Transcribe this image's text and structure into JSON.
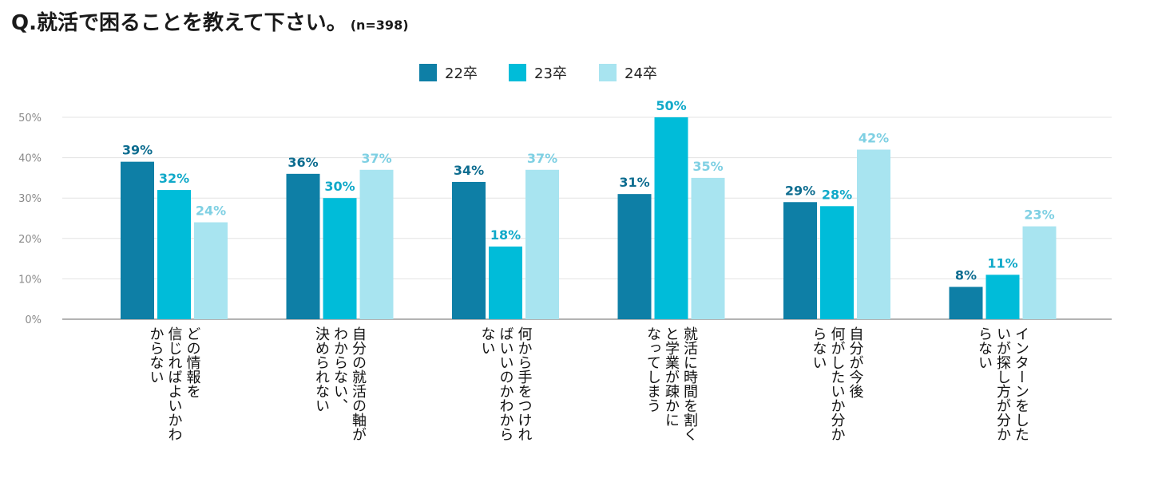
{
  "title": {
    "main": "Q.就活で困ることを教えて下さい。",
    "note": "(n=398)"
  },
  "chart_data": {
    "type": "bar",
    "title": "Q.就活で困ることを教えて下さい。(n=398)",
    "ylim": [
      0,
      50
    ],
    "yticks": [
      "0%",
      "10%",
      "20%",
      "30%",
      "40%",
      "50%"
    ],
    "grid": true,
    "legend_position": "top-center",
    "categories": [
      [
        "どの情報を",
        "信じればよいかわ",
        "からない"
      ],
      [
        "自分の就活の軸が",
        "わからない、",
        "決められない"
      ],
      [
        "何から手をつけれ",
        "ばいいのかわから",
        "ない"
      ],
      [
        "就活に時間を割く",
        "と学業が疎かに",
        "なってしまう"
      ],
      [
        "自分が今後",
        "何がしたいか分か",
        "らない"
      ],
      [
        "インターンをした",
        "いが探し方が分か",
        "らない"
      ]
    ],
    "series": [
      {
        "name": "22卒",
        "color": "#0e7fa6",
        "values": [
          39,
          36,
          34,
          31,
          29,
          8
        ]
      },
      {
        "name": "23卒",
        "color": "#00bcd9",
        "values": [
          32,
          30,
          18,
          50,
          28,
          11
        ]
      },
      {
        "name": "24卒",
        "color": "#a8e4f0",
        "values": [
          24,
          37,
          37,
          35,
          42,
          23
        ]
      }
    ],
    "label_colors": [
      "#0e6d90",
      "#10a9c9",
      "#7fd0e3"
    ],
    "value_suffix": "%"
  }
}
